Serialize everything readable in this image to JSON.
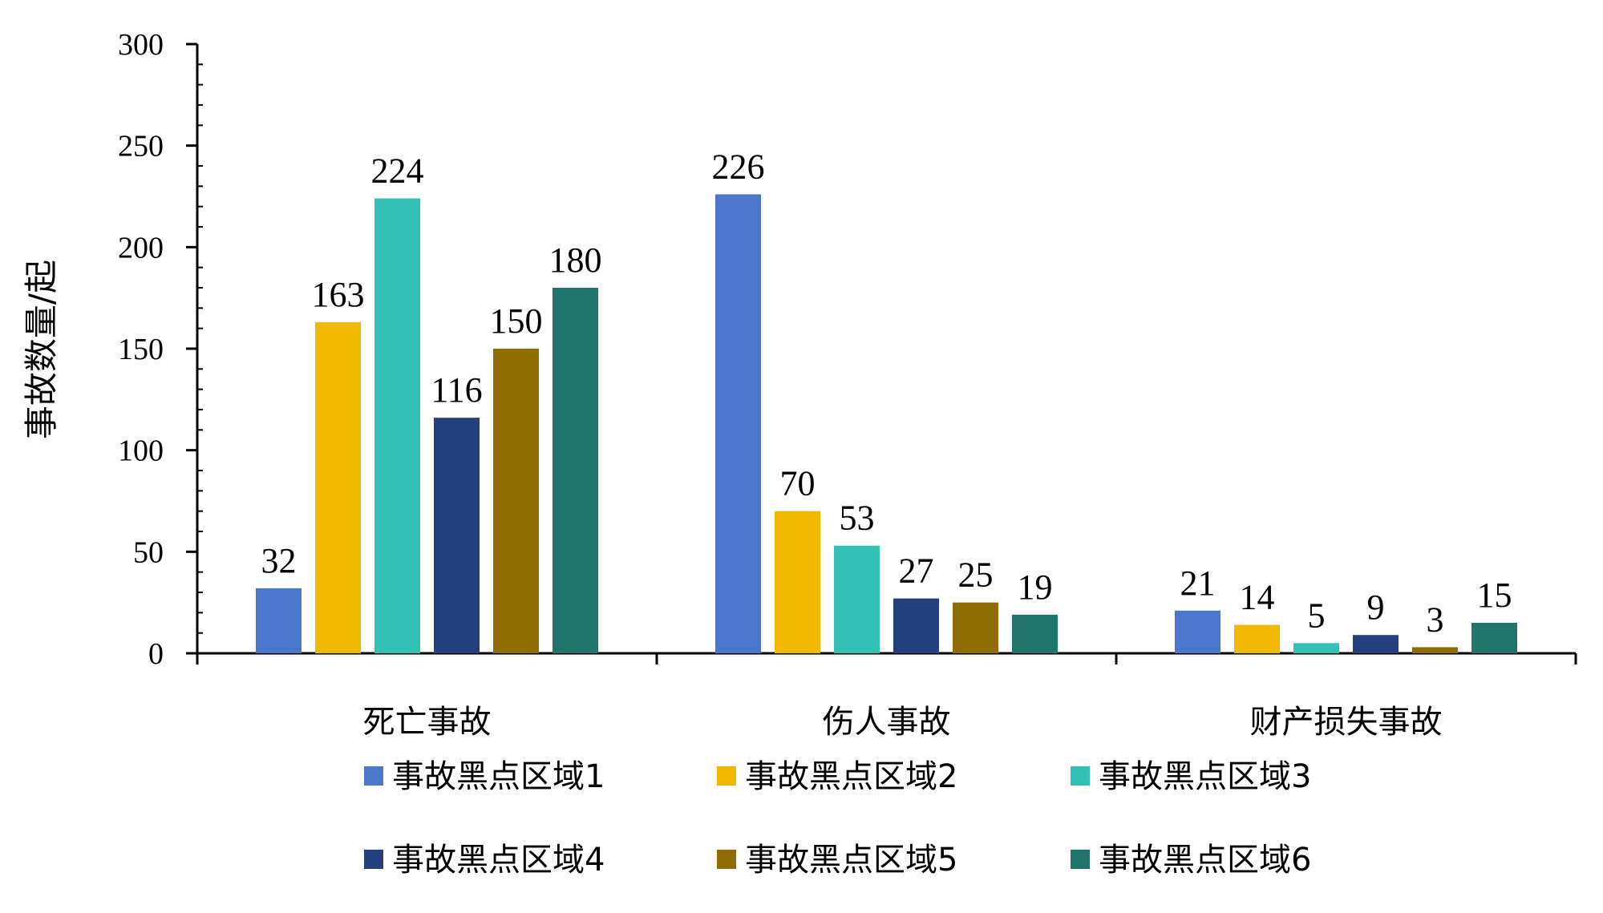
{
  "chart_data": {
    "type": "bar",
    "title": "",
    "xlabel": "",
    "ylabel": "事故数量/起",
    "ylim": [
      0,
      300
    ],
    "yticks": [
      0,
      50,
      100,
      150,
      200,
      250,
      300
    ],
    "categories": [
      "死亡事故",
      "伤人事故",
      "财产损失事故"
    ],
    "series": [
      {
        "name": "事故黑点区域1",
        "color": "#4a76cc",
        "values": [
          32,
          226,
          21
        ]
      },
      {
        "name": "事故黑点区域2",
        "color": "#f2b800",
        "values": [
          163,
          70,
          14
        ]
      },
      {
        "name": "事故黑点区域3",
        "color": "#33c1b5",
        "values": [
          224,
          53,
          5
        ]
      },
      {
        "name": "事故黑点区域4",
        "color": "#26407f",
        "values": [
          116,
          27,
          9
        ]
      },
      {
        "name": "事故黑点区域5",
        "color": "#8f6d00",
        "values": [
          150,
          25,
          3
        ]
      },
      {
        "name": "事故黑点区域6",
        "color": "#1f756b",
        "values": [
          180,
          19,
          15
        ]
      }
    ],
    "legend_position": "bottom",
    "grid": false
  }
}
